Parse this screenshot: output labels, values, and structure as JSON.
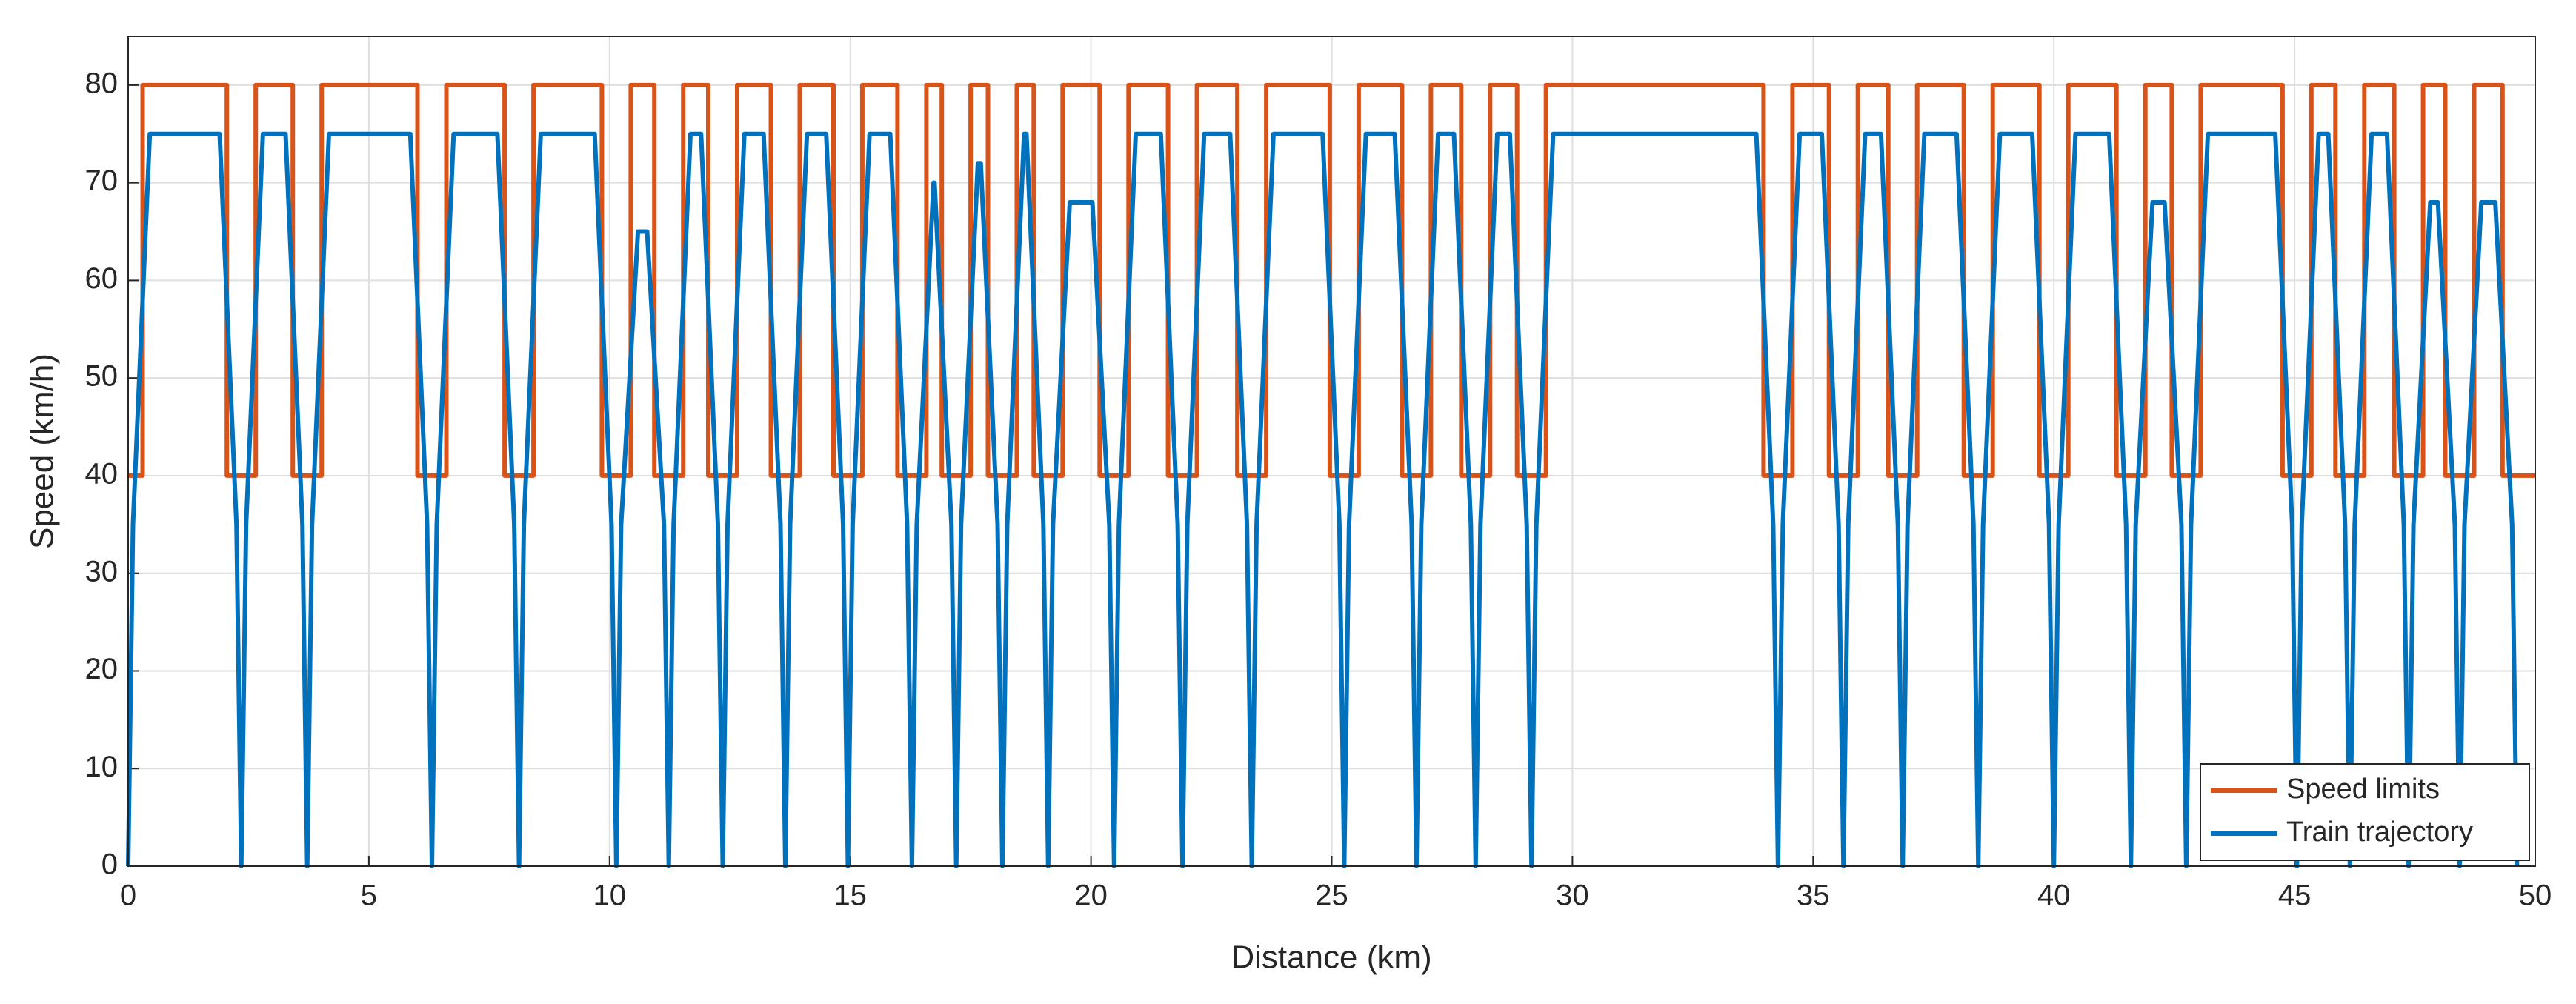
{
  "chart_data": {
    "type": "line",
    "xlabel": "Distance (km)",
    "ylabel": "Speed (km/h)",
    "xlim": [
      0,
      50
    ],
    "ylim": [
      0,
      85
    ],
    "xticks": [
      0,
      5,
      10,
      15,
      20,
      25,
      30,
      35,
      40,
      45,
      50
    ],
    "yticks": [
      0,
      10,
      20,
      30,
      40,
      50,
      60,
      70,
      80
    ],
    "grid": true,
    "legend": "lower right",
    "series": [
      {
        "name": "Speed limits",
        "color": "#D95319",
        "x": [
          0,
          0.3,
          0.3,
          2.05,
          2.05,
          2.65,
          2.65,
          3.42,
          3.42,
          4.02,
          4.02,
          6.01,
          6.01,
          6.61,
          6.61,
          7.82,
          7.82,
          8.42,
          8.42,
          9.84,
          9.84,
          10.44,
          10.44,
          10.93,
          10.93,
          11.53,
          11.53,
          12.05,
          12.05,
          12.65,
          12.65,
          13.35,
          13.35,
          13.95,
          13.95,
          14.65,
          14.65,
          15.25,
          15.25,
          15.98,
          15.98,
          16.58,
          16.58,
          16.9,
          16.9,
          17.5,
          17.5,
          17.86,
          17.86,
          18.46,
          18.46,
          18.81,
          18.81,
          19.41,
          19.41,
          20.18,
          20.18,
          20.78,
          20.78,
          21.6,
          21.6,
          22.2,
          22.2,
          23.04,
          23.04,
          23.64,
          23.64,
          24.96,
          24.96,
          25.56,
          25.56,
          26.46,
          26.46,
          27.06,
          27.06,
          27.69,
          27.69,
          28.29,
          28.29,
          28.85,
          28.85,
          29.45,
          29.45,
          33.97,
          33.97,
          34.57,
          34.57,
          35.33,
          35.33,
          35.93,
          35.93,
          36.56,
          36.56,
          37.16,
          37.16,
          38.13,
          38.13,
          38.73,
          38.73,
          39.7,
          39.7,
          40.3,
          40.3,
          41.3,
          41.3,
          41.9,
          41.9,
          42.45,
          42.45,
          43.05,
          43.05,
          44.75,
          44.75,
          45.35,
          45.35,
          45.85,
          45.85,
          46.45,
          46.45,
          47.07,
          47.07,
          47.67,
          47.67,
          48.13,
          48.13,
          48.73,
          48.73,
          49.32,
          49.32,
          50
        ],
        "values": [
          40,
          40,
          80,
          80,
          40,
          40,
          80,
          80,
          40,
          40,
          80,
          80,
          40,
          40,
          80,
          80,
          40,
          40,
          80,
          80,
          40,
          40,
          80,
          80,
          40,
          40,
          80,
          80,
          40,
          40,
          80,
          80,
          40,
          40,
          80,
          80,
          40,
          40,
          80,
          80,
          40,
          40,
          80,
          80,
          40,
          40,
          80,
          80,
          40,
          40,
          80,
          80,
          40,
          40,
          80,
          80,
          40,
          40,
          80,
          80,
          40,
          40,
          80,
          80,
          40,
          40,
          80,
          80,
          40,
          40,
          80,
          80,
          40,
          40,
          80,
          80,
          40,
          40,
          80,
          80,
          40,
          40,
          80,
          80,
          40,
          40,
          80,
          80,
          40,
          40,
          80,
          80,
          40,
          40,
          80,
          80,
          40,
          40,
          80,
          80,
          40,
          40,
          80,
          80,
          40,
          40,
          80,
          80,
          40,
          40,
          80,
          80,
          40,
          40,
          80,
          80,
          40,
          40,
          80,
          80,
          40,
          40,
          80,
          80,
          40,
          40,
          80,
          80,
          40,
          40
        ]
      },
      {
        "name": "Train trajectory",
        "color": "#0072BD",
        "x": [
          0,
          0.1,
          0.45,
          1.9,
          2.25,
          2.35,
          2.45,
          2.8,
          3.27,
          3.62,
          3.72,
          3.82,
          4.17,
          5.86,
          6.21,
          6.31,
          6.41,
          6.76,
          7.67,
          8.02,
          8.12,
          8.22,
          8.57,
          9.69,
          10.04,
          10.14,
          10.24,
          10.59,
          10.78,
          11.13,
          11.23,
          11.33,
          11.68,
          11.9,
          12.25,
          12.35,
          12.45,
          12.8,
          13.2,
          13.55,
          13.65,
          13.75,
          14.1,
          14.5,
          14.85,
          14.95,
          15.05,
          15.4,
          15.83,
          16.18,
          16.28,
          16.38,
          16.73,
          16.75,
          17.1,
          17.2,
          17.3,
          17.65,
          17.71,
          18.06,
          18.16,
          18.26,
          18.61,
          18.66,
          19.01,
          19.11,
          19.21,
          19.56,
          20.03,
          20.38,
          20.48,
          20.58,
          20.93,
          21.45,
          21.8,
          21.9,
          22.0,
          22.35,
          22.89,
          23.24,
          23.34,
          23.44,
          23.79,
          24.81,
          25.16,
          25.26,
          25.36,
          25.71,
          26.31,
          26.66,
          26.76,
          26.86,
          27.21,
          27.54,
          27.89,
          27.99,
          28.09,
          28.44,
          28.7,
          29.05,
          29.15,
          29.25,
          29.6,
          33.82,
          34.17,
          34.27,
          34.37,
          34.72,
          35.18,
          35.53,
          35.63,
          35.73,
          36.08,
          36.41,
          36.76,
          36.86,
          36.96,
          37.31,
          37.98,
          38.33,
          38.43,
          38.53,
          38.88,
          39.55,
          39.9,
          40.0,
          40.1,
          40.45,
          41.15,
          41.5,
          41.6,
          41.7,
          42.05,
          42.3,
          42.65,
          42.75,
          42.85,
          43.2,
          44.6,
          44.95,
          45.05,
          45.15,
          45.5,
          45.7,
          46.05,
          46.15,
          46.25,
          46.6,
          46.92,
          47.27,
          47.37,
          47.47,
          47.82,
          47.98,
          48.33,
          48.43,
          48.53,
          48.88,
          49.17,
          49.52,
          49.62
        ],
        "values": [
          0,
          35,
          75,
          75,
          35,
          0,
          35,
          75,
          75,
          35,
          0,
          35,
          75,
          75,
          35,
          0,
          35,
          75,
          75,
          35,
          0,
          35,
          75,
          75,
          35,
          0,
          35,
          65,
          65,
          35,
          0,
          35,
          75,
          75,
          35,
          0,
          35,
          75,
          75,
          35,
          0,
          35,
          75,
          75,
          35,
          0,
          35,
          75,
          75,
          35,
          0,
          35,
          70,
          70,
          35,
          0,
          35,
          72,
          72,
          35,
          0,
          35,
          75,
          75,
          35,
          0,
          35,
          68,
          68,
          35,
          0,
          35,
          75,
          75,
          35,
          0,
          35,
          75,
          75,
          35,
          0,
          35,
          75,
          75,
          35,
          0,
          35,
          75,
          75,
          35,
          0,
          35,
          75,
          75,
          35,
          0,
          35,
          75,
          75,
          35,
          0,
          35,
          75,
          75,
          35,
          0,
          35,
          75,
          75,
          35,
          0,
          35,
          75,
          75,
          35,
          0,
          35,
          75,
          75,
          35,
          0,
          35,
          75,
          75,
          35,
          0,
          35,
          75,
          75,
          35,
          0,
          35,
          68,
          68,
          35,
          0,
          35,
          75,
          75,
          35,
          0,
          35,
          75,
          75,
          35,
          0,
          35,
          75,
          75,
          35,
          0,
          35,
          68,
          68,
          35,
          0,
          35,
          68,
          68,
          35,
          0
        ]
      }
    ]
  }
}
